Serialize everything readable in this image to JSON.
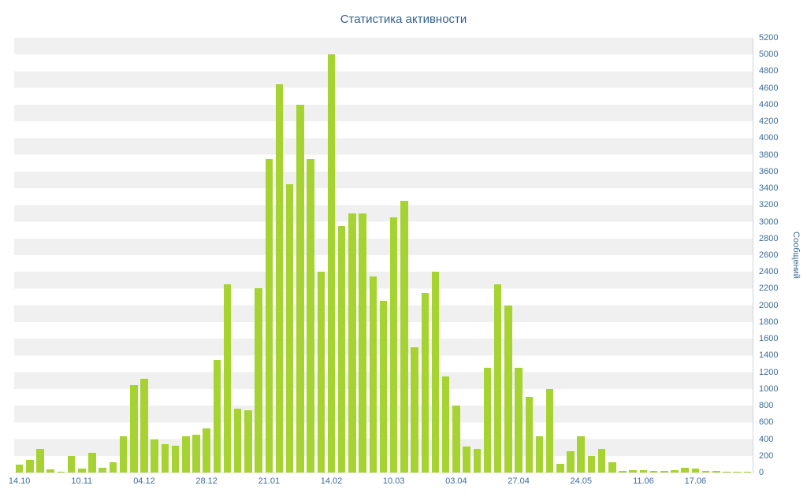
{
  "title": "Статистика активности",
  "colors": {
    "bar": "#a6d331",
    "axis_text": "#3d6d99",
    "title_text": "#34618c",
    "stripe": "#f0f0f0",
    "background": "#ffffff"
  },
  "chart_data": {
    "type": "bar",
    "title": "Статистика активности",
    "xlabel": "",
    "ylabel": "Сообщений",
    "ylim": [
      0,
      5200
    ],
    "y_step": 200,
    "grid": "striped-horizontal-bands",
    "legend_position": "none",
    "values": [
      90,
      150,
      280,
      40,
      10,
      200,
      50,
      240,
      60,
      120,
      430,
      1050,
      1120,
      400,
      340,
      320,
      430,
      450,
      530,
      1350,
      2250,
      760,
      740,
      2200,
      3750,
      4640,
      3450,
      4400,
      3750,
      2400,
      5000,
      2950,
      3100,
      3100,
      2350,
      2050,
      3050,
      3250,
      1500,
      2150,
      2400,
      1150,
      800,
      310,
      280,
      1250,
      2250,
      2000,
      1250,
      900,
      430,
      1000,
      100,
      250,
      430,
      200,
      280,
      120,
      20,
      30,
      30,
      20,
      20,
      30,
      60,
      50,
      20,
      20,
      10,
      10,
      10
    ],
    "x_tick_labels": [
      {
        "label": "14.10",
        "index": 0
      },
      {
        "label": "10.11",
        "index": 6
      },
      {
        "label": "04.12",
        "index": 12
      },
      {
        "label": "28.12",
        "index": 18
      },
      {
        "label": "21.01",
        "index": 24
      },
      {
        "label": "14.02",
        "index": 30
      },
      {
        "label": "10.03",
        "index": 36
      },
      {
        "label": "03.04",
        "index": 42
      },
      {
        "label": "27.04",
        "index": 48
      },
      {
        "label": "24.05",
        "index": 54
      },
      {
        "label": "11.06",
        "index": 60
      },
      {
        "label": "17.06",
        "index": 65
      }
    ]
  }
}
